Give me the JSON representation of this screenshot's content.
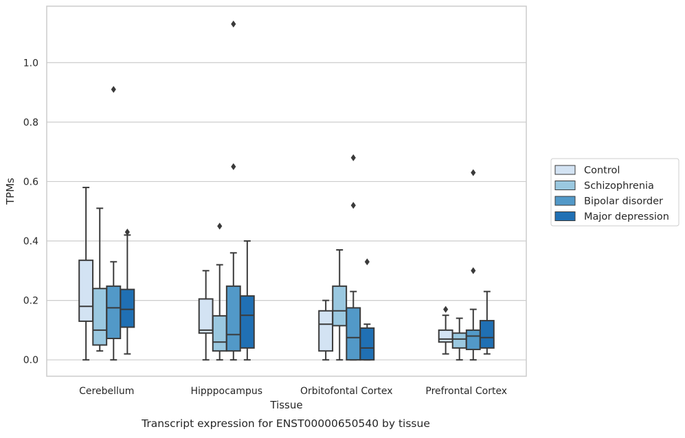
{
  "chart_data": {
    "type": "boxplot",
    "title": "",
    "caption": "Transcript expression for ENST00000650540 by tissue",
    "xlabel": "Tissue",
    "ylabel": "TPMs",
    "ylim": [
      -0.055,
      1.19
    ],
    "yticks": [
      "0.0",
      "0.2",
      "0.4",
      "0.6",
      "0.8",
      "1.0"
    ],
    "grid": "horizontal",
    "legend_position": "right",
    "categories": [
      "Cerebellum",
      "Hipppocampus",
      "Orbitofontal Cortex",
      "Prefrontal Cortex"
    ],
    "series": [
      {
        "name": "Control",
        "color": "#d3e3f3",
        "boxes": [
          {
            "whisker_low": 0.0,
            "q1": 0.13,
            "median": 0.18,
            "q3": 0.335,
            "whisker_high": 0.58,
            "outliers": []
          },
          {
            "whisker_low": 0.0,
            "q1": 0.09,
            "median": 0.1,
            "q3": 0.205,
            "whisker_high": 0.3,
            "outliers": []
          },
          {
            "whisker_low": 0.0,
            "q1": 0.03,
            "median": 0.12,
            "q3": 0.165,
            "whisker_high": 0.2,
            "outliers": []
          },
          {
            "whisker_low": 0.02,
            "q1": 0.06,
            "median": 0.07,
            "q3": 0.1,
            "whisker_high": 0.15,
            "outliers": [
              0.17
            ]
          }
        ]
      },
      {
        "name": "Schizophrenia",
        "color": "#9ac8e0",
        "boxes": [
          {
            "whisker_low": 0.03,
            "q1": 0.05,
            "median": 0.1,
            "q3": 0.24,
            "whisker_high": 0.51,
            "outliers": []
          },
          {
            "whisker_low": 0.0,
            "q1": 0.03,
            "median": 0.06,
            "q3": 0.148,
            "whisker_high": 0.32,
            "outliers": [
              0.45
            ]
          },
          {
            "whisker_low": 0.0,
            "q1": 0.115,
            "median": 0.165,
            "q3": 0.248,
            "whisker_high": 0.37,
            "outliers": []
          },
          {
            "whisker_low": 0.0,
            "q1": 0.04,
            "median": 0.07,
            "q3": 0.09,
            "whisker_high": 0.14,
            "outliers": []
          }
        ]
      },
      {
        "name": "Bipolar disorder",
        "color": "#5299c8",
        "boxes": [
          {
            "whisker_low": 0.0,
            "q1": 0.072,
            "median": 0.175,
            "q3": 0.248,
            "whisker_high": 0.33,
            "outliers": [
              0.91
            ]
          },
          {
            "whisker_low": 0.0,
            "q1": 0.03,
            "median": 0.085,
            "q3": 0.248,
            "whisker_high": 0.36,
            "outliers": [
              0.65,
              1.13
            ]
          },
          {
            "whisker_low": 0.0,
            "q1": 0.0,
            "median": 0.075,
            "q3": 0.175,
            "whisker_high": 0.23,
            "outliers": [
              0.52,
              0.68
            ]
          },
          {
            "whisker_low": 0.0,
            "q1": 0.035,
            "median": 0.08,
            "q3": 0.1,
            "whisker_high": 0.17,
            "outliers": [
              0.3,
              0.63
            ]
          }
        ]
      },
      {
        "name": "Major depression",
        "color": "#2070b4",
        "boxes": [
          {
            "whisker_low": 0.02,
            "q1": 0.11,
            "median": 0.17,
            "q3": 0.237,
            "whisker_high": 0.42,
            "outliers": [
              0.43
            ]
          },
          {
            "whisker_low": 0.0,
            "q1": 0.04,
            "median": 0.15,
            "q3": 0.215,
            "whisker_high": 0.4,
            "outliers": []
          },
          {
            "whisker_low": 0.0,
            "q1": 0.0,
            "median": 0.04,
            "q3": 0.107,
            "whisker_high": 0.12,
            "outliers": [
              0.33
            ]
          },
          {
            "whisker_low": 0.02,
            "q1": 0.04,
            "median": 0.075,
            "q3": 0.132,
            "whisker_high": 0.23,
            "outliers": []
          }
        ]
      }
    ]
  }
}
